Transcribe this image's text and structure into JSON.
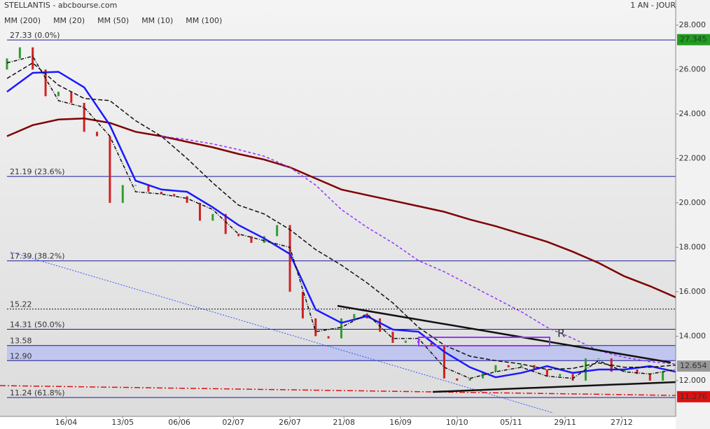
{
  "header": {
    "title": "STELLANTIS - abcbourse.com",
    "period": "1 AN - JOUR"
  },
  "chart_data": {
    "type": "candlestick",
    "x": [
      0,
      10,
      20,
      30,
      40,
      50,
      60,
      70,
      80,
      90,
      100,
      110,
      120,
      130,
      140,
      150,
      160,
      170,
      180,
      190,
      200,
      210,
      220,
      230,
      240,
      250,
      260
    ],
    "xlim": [
      -2.72,
      260
    ],
    "xticks": [
      {
        "value": 23,
        "label": "16/04"
      },
      {
        "value": 45,
        "label": "13/05"
      },
      {
        "value": 67,
        "label": "06/06"
      },
      {
        "value": 88,
        "label": "02/07"
      },
      {
        "value": 110,
        "label": "26/07"
      },
      {
        "value": 131,
        "label": "21/08"
      },
      {
        "value": 153,
        "label": "16/09"
      },
      {
        "value": 175,
        "label": "10/10"
      },
      {
        "value": 196,
        "label": "05/11"
      },
      {
        "value": 217,
        "label": "29/11"
      },
      {
        "value": 239,
        "label": "27/12"
      }
    ],
    "ylim": [
      10.39,
      29.13
    ],
    "yticks": [
      {
        "value": 12,
        "label": "12.000"
      },
      {
        "value": 14,
        "label": "14.000"
      },
      {
        "value": 16,
        "label": "16.000"
      },
      {
        "value": 18,
        "label": "18.000"
      },
      {
        "value": 20,
        "label": "20.000"
      },
      {
        "value": 22,
        "label": "22.000"
      },
      {
        "value": 24,
        "label": "24.000"
      },
      {
        "value": 26,
        "label": "26.000"
      },
      {
        "value": 28,
        "label": "28.000"
      }
    ],
    "series": [
      {
        "name": "MM (200)",
        "color": "#800000",
        "dash": "",
        "width": 2.5,
        "values": [
          23.0,
          23.5,
          23.75,
          23.8,
          23.6,
          23.2,
          23.0,
          22.75,
          22.5,
          22.2,
          21.95,
          21.6,
          21.1,
          20.6,
          20.35,
          20.1,
          19.85,
          19.6,
          19.25,
          18.95,
          18.6,
          18.25,
          17.8,
          17.3,
          16.7,
          16.25,
          15.75
        ]
      },
      {
        "name": "MM (20)",
        "color": "#1a1aff",
        "dash": "",
        "width": 2.5,
        "values": [
          25.0,
          25.85,
          25.9,
          25.2,
          23.5,
          21.0,
          20.6,
          20.5,
          19.8,
          19.0,
          18.4,
          17.7,
          15.2,
          14.6,
          14.9,
          14.3,
          14.2,
          13.3,
          12.6,
          12.15,
          12.35,
          12.65,
          12.35,
          12.5,
          12.5,
          12.65,
          12.4
        ]
      },
      {
        "name": "MM (50)",
        "color": "#111111",
        "dash": "6 3",
        "width": 1.5,
        "values": [
          25.6,
          26.3,
          25.3,
          24.7,
          24.6,
          23.7,
          23.0,
          22.0,
          20.9,
          19.9,
          19.5,
          18.8,
          17.9,
          17.2,
          16.4,
          15.5,
          14.4,
          13.6,
          13.1,
          12.9,
          12.75,
          12.5,
          12.55,
          12.8,
          12.6,
          12.6,
          12.7
        ]
      },
      {
        "name": "MM (10)",
        "color": "#111111",
        "dash": "5 2 1 2",
        "width": 1.5,
        "values": [
          26.3,
          26.6,
          24.6,
          24.3,
          23.0,
          20.5,
          20.4,
          20.2,
          19.7,
          18.6,
          18.3,
          18.0,
          14.2,
          14.4,
          15.0,
          13.9,
          13.9,
          12.6,
          12.1,
          12.4,
          12.6,
          12.2,
          12.1,
          12.9,
          12.4,
          12.3,
          12.5
        ]
      },
      {
        "name": "MM (100)",
        "color": "#9933ff",
        "dash": "4 3",
        "width": 1.5,
        "values": [
          null,
          null,
          null,
          null,
          null,
          null,
          23.0,
          22.85,
          22.65,
          22.4,
          22.1,
          21.6,
          20.8,
          19.7,
          18.9,
          18.2,
          17.4,
          16.9,
          16.3,
          15.7,
          15.1,
          14.4,
          13.9,
          13.35,
          13.05,
          12.85,
          12.75
        ]
      }
    ],
    "candles": {
      "x": [
        0,
        5,
        10,
        15,
        20,
        25,
        30,
        35,
        40,
        45,
        50,
        55,
        60,
        65,
        70,
        75,
        80,
        85,
        90,
        95,
        100,
        105,
        110,
        115,
        120,
        125,
        130,
        135,
        140,
        145,
        150,
        155,
        160,
        165,
        170,
        175,
        180,
        185,
        190,
        195,
        200,
        205,
        210,
        215,
        220,
        225,
        230,
        235,
        240,
        245,
        250,
        255
      ],
      "open": [
        26.0,
        26.5,
        27.0,
        26.0,
        24.8,
        25.0,
        24.5,
        23.2,
        23.0,
        20.0,
        20.8,
        20.8,
        20.5,
        20.4,
        20.3,
        20.0,
        19.2,
        19.5,
        18.6,
        18.5,
        18.2,
        18.5,
        19.0,
        16.0,
        14.8,
        14.0,
        13.9,
        14.8,
        15.0,
        14.8,
        14.2,
        13.7,
        13.8,
        13.7,
        13.6,
        12.1,
        12.0,
        12.1,
        12.4,
        12.7,
        12.6,
        12.7,
        12.5,
        12.2,
        12.3,
        12.0,
        13.0,
        13.0,
        12.4,
        12.5,
        12.3,
        12.0
      ],
      "close": [
        26.5,
        27.0,
        26.0,
        24.8,
        25.0,
        24.5,
        23.2,
        23.0,
        20.0,
        20.8,
        20.8,
        20.5,
        20.4,
        20.3,
        20.0,
        19.2,
        19.5,
        18.6,
        18.5,
        18.2,
        18.5,
        19.0,
        16.0,
        14.8,
        14.0,
        13.9,
        14.8,
        15.0,
        14.8,
        14.2,
        13.7,
        13.8,
        13.7,
        13.6,
        12.1,
        12.0,
        12.1,
        12.4,
        12.7,
        12.6,
        12.7,
        12.5,
        12.2,
        12.3,
        12.0,
        13.0,
        13.0,
        12.4,
        12.5,
        12.3,
        12.0,
        12.4
      ],
      "up_color": "#2e9e2e",
      "down_color": "#d02020"
    },
    "levels": [
      {
        "value": 27.33,
        "label": "27.33  (0.0%)",
        "color": "#1a1a9a",
        "dash": ""
      },
      {
        "value": 21.19,
        "label": "21.19  (23.6%)",
        "color": "#1a1a9a",
        "dash": ""
      },
      {
        "value": 17.39,
        "label": "17.39  (38.2%)",
        "color": "#1a1a9a",
        "dash": ""
      },
      {
        "value": 15.22,
        "label": "15.22",
        "color": "#111111",
        "dash": "2 2"
      },
      {
        "value": 14.31,
        "label": "14.31  (50.0%)",
        "color": "#1a1a9a",
        "dash": ""
      },
      {
        "value": 13.58,
        "label": "13.58",
        "color": "#1a1a9a",
        "dash": ""
      },
      {
        "value": 12.9,
        "label": "12.90",
        "color": "#1a1a9a",
        "dash": ""
      },
      {
        "value": 11.24,
        "label": "11.24  (61.8%)",
        "color": "#1a1a9a",
        "dash": ""
      }
    ],
    "band_color": "#b8bff0",
    "price_tags": [
      {
        "value": 27.345,
        "color": "#1e9e1e"
      },
      {
        "value": 12.654,
        "color": "#999999"
      },
      {
        "value": 11.276,
        "color": "#e01010"
      }
    ],
    "annotation": "R"
  }
}
